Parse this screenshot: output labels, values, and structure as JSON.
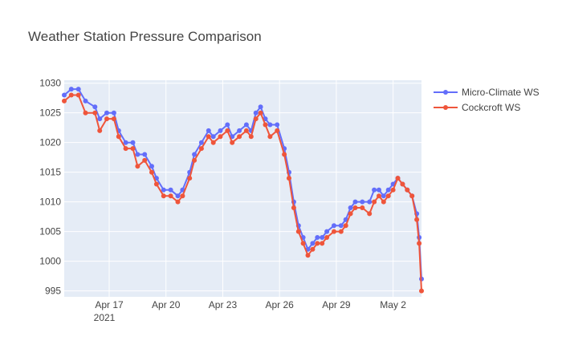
{
  "chart_data": {
    "type": "line",
    "mode": "lines+markers",
    "title": "Weather Station Pressure Comparison",
    "xlabel": "",
    "ylabel": "",
    "x_type": "date",
    "x_range": [
      "2021-04-14T15:00",
      "2021-05-03T12:00"
    ],
    "ylim": [
      994,
      1030.5
    ],
    "x_tick_values": [
      "2021-04-17",
      "2021-04-20",
      "2021-04-23",
      "2021-04-26",
      "2021-04-29",
      "2021-05-02"
    ],
    "x_tick_labels": [
      "Apr 17",
      "Apr 20",
      "Apr 23",
      "Apr 26",
      "Apr 29",
      "May 2"
    ],
    "x_tick_sublabel": "2021",
    "y_tick_values": [
      995,
      1000,
      1005,
      1010,
      1015,
      1020,
      1025,
      1030
    ],
    "y_tick_labels": [
      "995",
      "1000",
      "1005",
      "1010",
      "1015",
      "1020",
      "1025",
      "1030"
    ],
    "grid": true,
    "legend_position": "top-right",
    "background": "#e5ecf6",
    "series": [
      {
        "name": "Micro-Climate WS",
        "color": "#636efa",
        "points": [
          [
            "2021-04-14T15:00",
            1028
          ],
          [
            "2021-04-15T00:00",
            1029
          ],
          [
            "2021-04-15T09:00",
            1029
          ],
          [
            "2021-04-15T18:00",
            1027
          ],
          [
            "2021-04-16T06:00",
            1026
          ],
          [
            "2021-04-16T12:00",
            1024
          ],
          [
            "2021-04-16T21:00",
            1025
          ],
          [
            "2021-04-17T06:00",
            1025
          ],
          [
            "2021-04-17T12:00",
            1022
          ],
          [
            "2021-04-17T21:00",
            1020
          ],
          [
            "2021-04-18T06:00",
            1020
          ],
          [
            "2021-04-18T12:00",
            1018
          ],
          [
            "2021-04-18T21:00",
            1018
          ],
          [
            "2021-04-19T06:00",
            1016
          ],
          [
            "2021-04-19T12:00",
            1014
          ],
          [
            "2021-04-19T21:00",
            1012
          ],
          [
            "2021-04-20T06:00",
            1012
          ],
          [
            "2021-04-20T15:00",
            1011
          ],
          [
            "2021-04-20T21:00",
            1012
          ],
          [
            "2021-04-21T06:00",
            1015
          ],
          [
            "2021-04-21T12:00",
            1018
          ],
          [
            "2021-04-21T21:00",
            1020
          ],
          [
            "2021-04-22T06:00",
            1022
          ],
          [
            "2021-04-22T12:00",
            1021
          ],
          [
            "2021-04-22T21:00",
            1022
          ],
          [
            "2021-04-23T06:00",
            1023
          ],
          [
            "2021-04-23T12:00",
            1021
          ],
          [
            "2021-04-23T21:00",
            1022
          ],
          [
            "2021-04-24T06:00",
            1023
          ],
          [
            "2021-04-24T12:00",
            1022
          ],
          [
            "2021-04-24T18:00",
            1025
          ],
          [
            "2021-04-25T00:00",
            1026
          ],
          [
            "2021-04-25T06:00",
            1024
          ],
          [
            "2021-04-25T12:00",
            1023
          ],
          [
            "2021-04-25T21:00",
            1023
          ],
          [
            "2021-04-26T06:00",
            1019
          ],
          [
            "2021-04-26T12:00",
            1015
          ],
          [
            "2021-04-26T18:00",
            1010
          ],
          [
            "2021-04-27T00:00",
            1006
          ],
          [
            "2021-04-27T06:00",
            1004
          ],
          [
            "2021-04-27T12:00",
            1002
          ],
          [
            "2021-04-27T18:00",
            1003
          ],
          [
            "2021-04-28T00:00",
            1004
          ],
          [
            "2021-04-28T06:00",
            1004
          ],
          [
            "2021-04-28T12:00",
            1005
          ],
          [
            "2021-04-28T21:00",
            1006
          ],
          [
            "2021-04-29T06:00",
            1006
          ],
          [
            "2021-04-29T12:00",
            1007
          ],
          [
            "2021-04-29T18:00",
            1009
          ],
          [
            "2021-04-30T00:00",
            1010
          ],
          [
            "2021-04-30T09:00",
            1010
          ],
          [
            "2021-04-30T18:00",
            1010
          ],
          [
            "2021-05-01T00:00",
            1012
          ],
          [
            "2021-05-01T06:00",
            1012
          ],
          [
            "2021-05-01T12:00",
            1011
          ],
          [
            "2021-05-01T18:00",
            1012
          ],
          [
            "2021-05-02T00:00",
            1013
          ],
          [
            "2021-05-02T06:00",
            1014
          ],
          [
            "2021-05-02T12:00",
            1013
          ],
          [
            "2021-05-02T18:00",
            1012
          ],
          [
            "2021-05-03T00:00",
            1011
          ],
          [
            "2021-05-03T06:00",
            1008
          ],
          [
            "2021-05-03T09:00",
            1004
          ],
          [
            "2021-05-03T12:00",
            997
          ]
        ]
      },
      {
        "name": "Cockcroft WS",
        "color": "#ef553b",
        "points": [
          [
            "2021-04-14T15:00",
            1027
          ],
          [
            "2021-04-15T00:00",
            1028
          ],
          [
            "2021-04-15T09:00",
            1028
          ],
          [
            "2021-04-15T18:00",
            1025
          ],
          [
            "2021-04-16T06:00",
            1025
          ],
          [
            "2021-04-16T12:00",
            1022
          ],
          [
            "2021-04-16T21:00",
            1024
          ],
          [
            "2021-04-17T06:00",
            1024
          ],
          [
            "2021-04-17T12:00",
            1021
          ],
          [
            "2021-04-17T21:00",
            1019
          ],
          [
            "2021-04-18T06:00",
            1019
          ],
          [
            "2021-04-18T12:00",
            1016
          ],
          [
            "2021-04-18T21:00",
            1017
          ],
          [
            "2021-04-19T06:00",
            1015
          ],
          [
            "2021-04-19T12:00",
            1013
          ],
          [
            "2021-04-19T21:00",
            1011
          ],
          [
            "2021-04-20T06:00",
            1011
          ],
          [
            "2021-04-20T15:00",
            1010
          ],
          [
            "2021-04-20T21:00",
            1011
          ],
          [
            "2021-04-21T06:00",
            1014
          ],
          [
            "2021-04-21T12:00",
            1017
          ],
          [
            "2021-04-21T21:00",
            1019
          ],
          [
            "2021-04-22T06:00",
            1021
          ],
          [
            "2021-04-22T12:00",
            1020
          ],
          [
            "2021-04-22T21:00",
            1021
          ],
          [
            "2021-04-23T06:00",
            1022
          ],
          [
            "2021-04-23T12:00",
            1020
          ],
          [
            "2021-04-23T21:00",
            1021
          ],
          [
            "2021-04-24T06:00",
            1022
          ],
          [
            "2021-04-24T12:00",
            1021
          ],
          [
            "2021-04-24T18:00",
            1024
          ],
          [
            "2021-04-25T00:00",
            1025
          ],
          [
            "2021-04-25T06:00",
            1023
          ],
          [
            "2021-04-25T12:00",
            1021
          ],
          [
            "2021-04-25T21:00",
            1022
          ],
          [
            "2021-04-26T06:00",
            1018
          ],
          [
            "2021-04-26T12:00",
            1014
          ],
          [
            "2021-04-26T18:00",
            1009
          ],
          [
            "2021-04-27T00:00",
            1005
          ],
          [
            "2021-04-27T06:00",
            1003
          ],
          [
            "2021-04-27T12:00",
            1001
          ],
          [
            "2021-04-27T18:00",
            1002
          ],
          [
            "2021-04-28T00:00",
            1003
          ],
          [
            "2021-04-28T06:00",
            1003
          ],
          [
            "2021-04-28T12:00",
            1004
          ],
          [
            "2021-04-28T21:00",
            1005
          ],
          [
            "2021-04-29T06:00",
            1005
          ],
          [
            "2021-04-29T12:00",
            1006
          ],
          [
            "2021-04-29T18:00",
            1008
          ],
          [
            "2021-04-30T00:00",
            1009
          ],
          [
            "2021-04-30T09:00",
            1009
          ],
          [
            "2021-04-30T18:00",
            1008
          ],
          [
            "2021-05-01T00:00",
            1010
          ],
          [
            "2021-05-01T06:00",
            1011
          ],
          [
            "2021-05-01T12:00",
            1010
          ],
          [
            "2021-05-01T18:00",
            1011
          ],
          [
            "2021-05-02T00:00",
            1012
          ],
          [
            "2021-05-02T06:00",
            1014
          ],
          [
            "2021-05-02T12:00",
            1013
          ],
          [
            "2021-05-02T18:00",
            1012
          ],
          [
            "2021-05-03T00:00",
            1011
          ],
          [
            "2021-05-03T06:00",
            1007
          ],
          [
            "2021-05-03T09:00",
            1003
          ],
          [
            "2021-05-03T12:00",
            995
          ]
        ]
      }
    ]
  }
}
